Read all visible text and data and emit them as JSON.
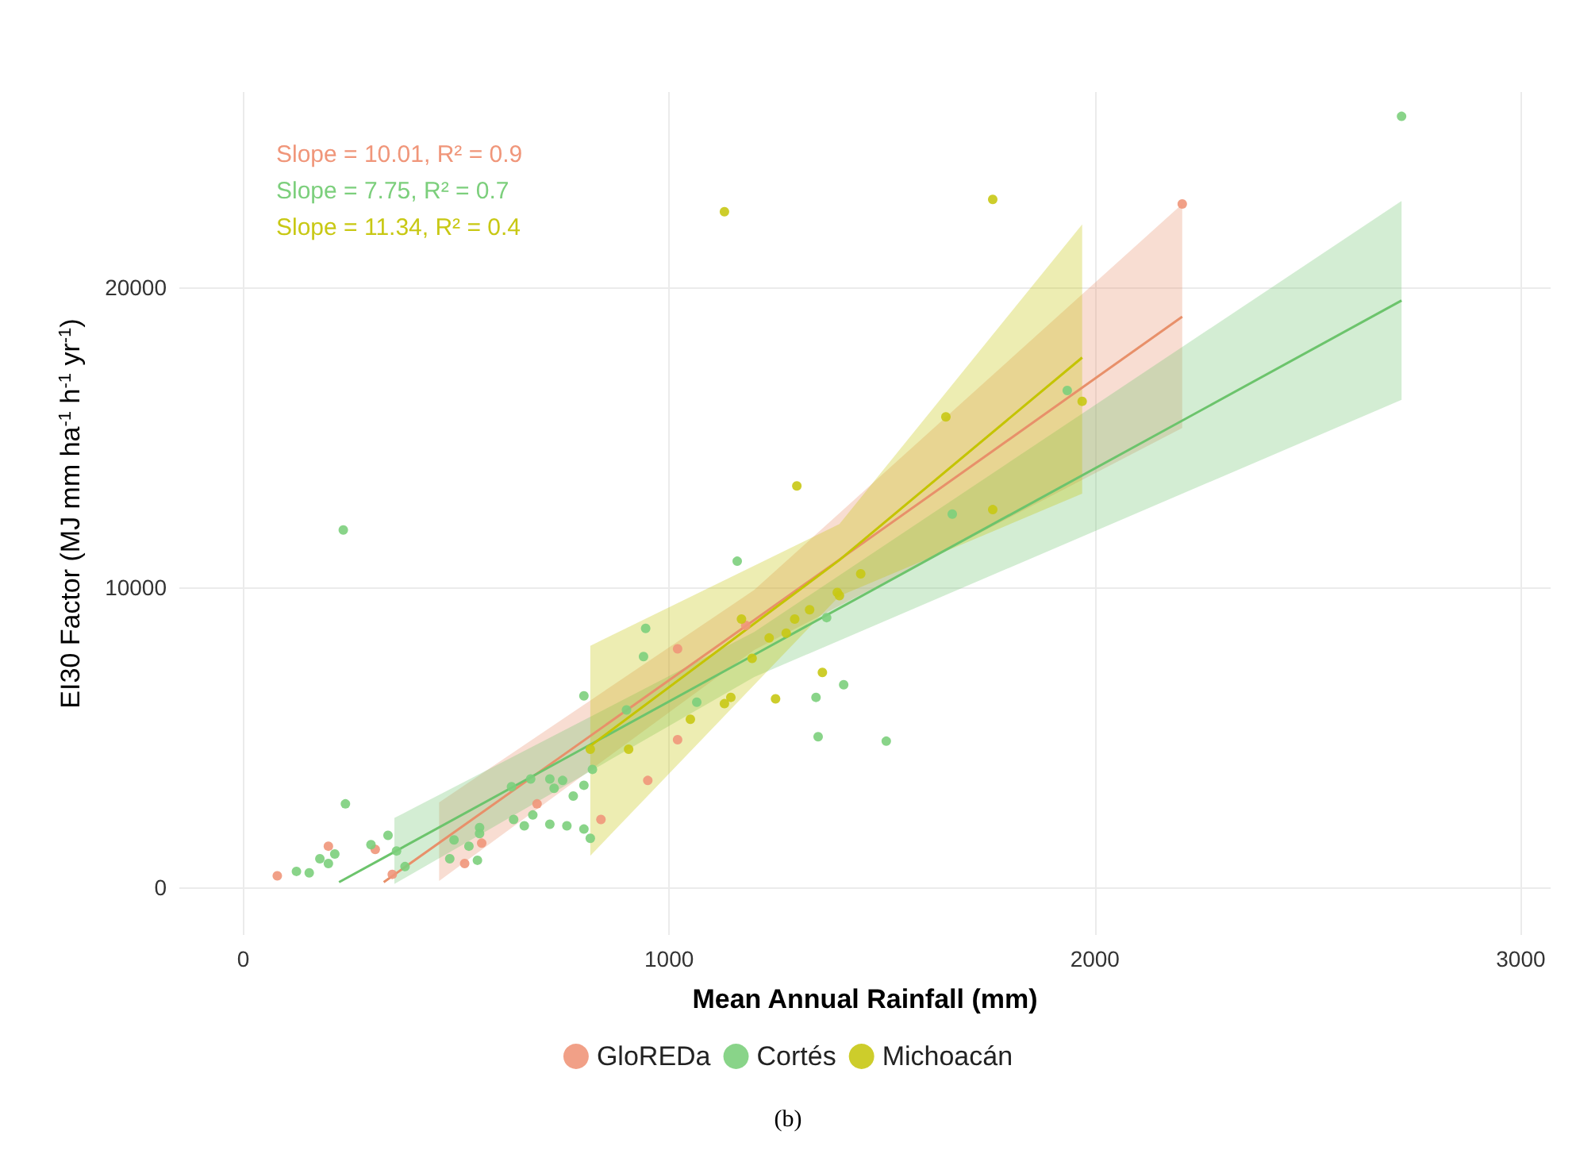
{
  "chart_data": {
    "type": "scatter",
    "xlabel": "Mean Annual Rainfall (mm)",
    "ylabel": "EI30 Factor (MJ mm ha$^{-1}$ h$^{-1}$ yr$^{-1}$)",
    "xlim": [
      -150,
      3070
    ],
    "ylim": [
      -1600,
      26500
    ],
    "xticks": [
      0,
      {
        "value": 1000,
        "label": "1000"
      },
      {
        "value": 2000,
        "label": "2000"
      },
      {
        "value": 3000,
        "label": "3000"
      }
    ],
    "yticks": [
      0,
      {
        "value": 10000,
        "label": "10000"
      },
      {
        "value": 20000,
        "label": "20000"
      }
    ],
    "grid": true,
    "legend": "bottom",
    "marker": "circle",
    "annotations": [
      "Slope = 10.01, R² = 0.9",
      "Slope = 7.75, R² = 0.7",
      "Slope = 11.34, R² = 0.4",
      "(b)"
    ],
    "series": [
      {
        "name": "GloREDa",
        "color": "#f0967a",
        "x": [
          80,
          200,
          310,
          350,
          520,
          560,
          690,
          840,
          950,
          1020,
          1020,
          1180,
          2205
        ],
        "values": [
          370,
          1360,
          1250,
          420,
          780,
          1460,
          2770,
          2250,
          3550,
          4910,
          7940,
          8720,
          22770
        ]
      },
      {
        "name": "Cortés",
        "color": "#7ccf7c",
        "x": [
          125,
          155,
          180,
          200,
          215,
          235,
          240,
          300,
          340,
          360,
          380,
          485,
          495,
          530,
          550,
          555,
          555,
          630,
          635,
          660,
          675,
          680,
          720,
          720,
          730,
          750,
          760,
          775,
          800,
          800,
          815,
          820,
          800,
          940,
          945,
          900,
          1065,
          1160,
          1370,
          1345,
          1350,
          1410,
          1510,
          1665,
          1935,
          2720
        ],
        "values": [
          520,
          470,
          940,
          780,
          1100,
          11900,
          2770,
          1410,
          1720,
          1200,
          680,
          940,
          1570,
          1360,
          890,
          1980,
          1780,
          3340,
          2250,
          2040,
          3600,
          2400,
          3600,
          2090,
          3290,
          3550,
          2040,
          3030,
          1930,
          3390,
          1620,
          3920,
          6370,
          7680,
          8620,
          5900,
          6160,
          10860,
          8980,
          6320,
          5010,
          6740,
          4860,
          12430,
          16550,
          25690
        ]
      },
      {
        "name": "Michoacán",
        "color": "#c8c814",
        "x": [
          815,
          905,
          1050,
          1130,
          1145,
          1170,
          1195,
          1235,
          1250,
          1275,
          1295,
          1330,
          1300,
          1360,
          1395,
          1400,
          1450,
          1650,
          1760,
          1970,
          1760,
          1130
        ],
        "values": [
          4590,
          4590,
          5590,
          6110,
          6320,
          8930,
          7620,
          8300,
          6270,
          8460,
          8930,
          9240,
          13370,
          7150,
          9820,
          9710,
          10440,
          15670,
          12580,
          16190,
          22920,
          22510
        ]
      },
      {
        "type": "line",
        "marker": "none",
        "color": "#e8906a",
        "x": [
          330,
          460,
          1200,
          2205
        ],
        "values": [
          160,
          1470,
          8900,
          19010
        ],
        "lower": [
          null,
          200,
          7900,
          15300
        ],
        "upper": [
          null,
          2820,
          9900,
          22770
        ]
      },
      {
        "type": "line",
        "marker": "none",
        "color": "#6cc46c",
        "x": [
          225,
          355,
          1200,
          2720
        ],
        "values": [
          160,
          1170,
          7740,
          19550
        ],
        "lower": [
          null,
          100,
          7000,
          16240
        ],
        "upper": [
          null,
          2300,
          8500,
          22870
        ]
      },
      {
        "type": "line",
        "marker": "none",
        "color": "#c4c400",
        "x": [
          815,
          1400,
          1970
        ],
        "values": [
          4700,
          10900,
          17650
        ],
        "lower": [
          1040,
          9700,
          13110
        ],
        "upper": [
          8040,
          12100,
          22090
        ]
      }
    ]
  }
}
